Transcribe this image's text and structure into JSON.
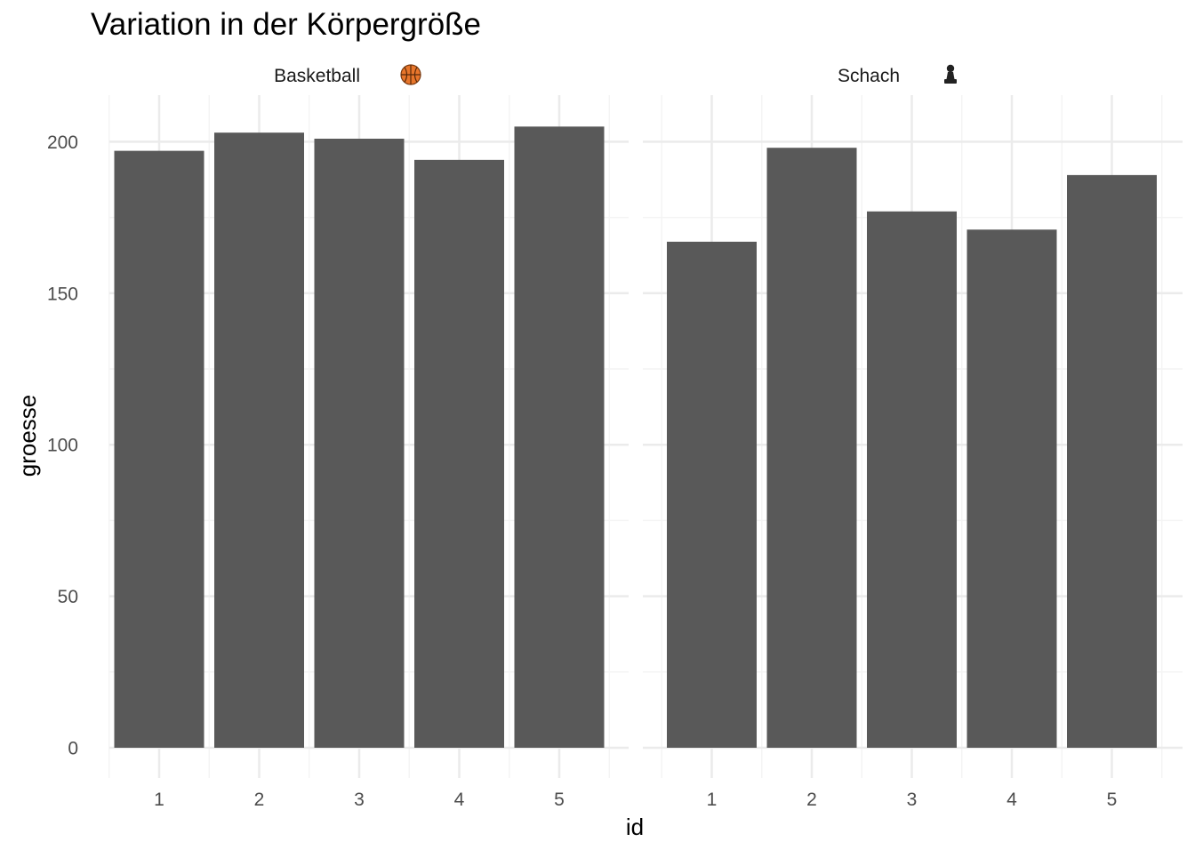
{
  "chart_data": {
    "type": "bar",
    "title": "Variation in der Körpergröße",
    "xlabel": "id",
    "ylabel": "groesse",
    "categories": [
      "1",
      "2",
      "3",
      "4",
      "5"
    ],
    "ylim": [
      0,
      215
    ],
    "yticks": [
      0,
      50,
      100,
      150,
      200
    ],
    "grid": true,
    "legend": "none",
    "bar_color": "#595959",
    "panels": [
      {
        "strip_label": "Basketball",
        "strip_icon": "basketball-icon",
        "values": [
          197,
          203,
          201,
          194,
          205
        ]
      },
      {
        "strip_label": "Schach",
        "strip_icon": "chess-pawn-icon",
        "values": [
          167,
          198,
          177,
          171,
          189
        ]
      }
    ]
  },
  "colors": {
    "bar": "#595959",
    "grid_major": "#ebebeb",
    "grid_minor": "#f4f4f4",
    "axis_text": "#4d4d4d",
    "text": "#000000"
  }
}
